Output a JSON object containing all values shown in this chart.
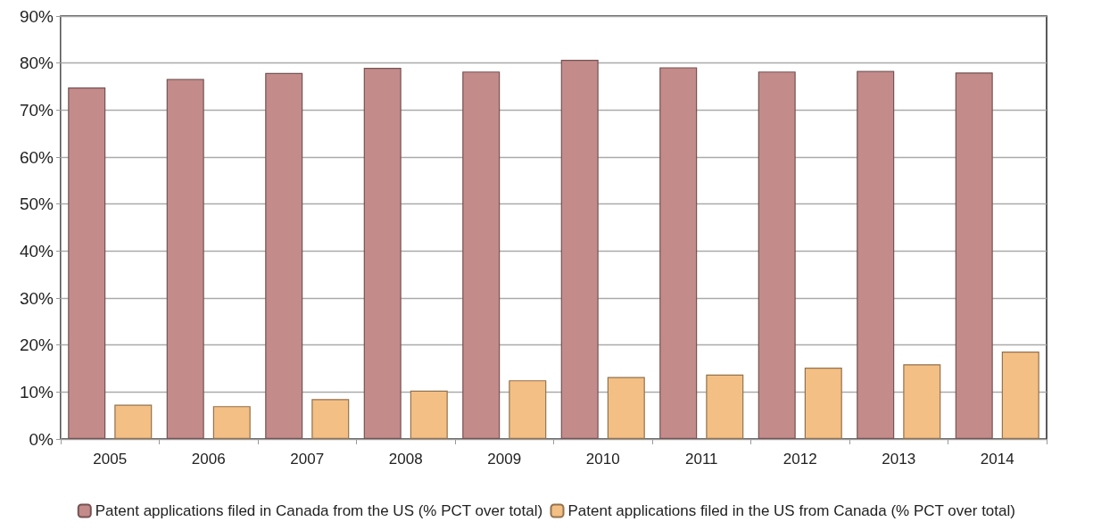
{
  "chart_data": {
    "type": "bar",
    "categories": [
      "2005",
      "2006",
      "2007",
      "2008",
      "2009",
      "2010",
      "2011",
      "2012",
      "2013",
      "2014"
    ],
    "series": [
      {
        "name": "Patent applications filed in Canada from the US (% PCT over total)",
        "color": "#c48b8b",
        "values": [
          74.8,
          76.6,
          77.9,
          79.0,
          78.2,
          80.7,
          79.1,
          78.2,
          78.3,
          78.0
        ]
      },
      {
        "name": "Patent applications filed in the US from Canada (% PCT over total)",
        "color": "#f4bf84",
        "values": [
          7.3,
          7.0,
          8.5,
          10.3,
          12.5,
          13.2,
          13.7,
          15.2,
          15.9,
          18.6
        ]
      }
    ],
    "ylim": [
      0,
      90
    ],
    "yticks": [
      {
        "value": 0,
        "label": "0%"
      },
      {
        "value": 10,
        "label": "10%"
      },
      {
        "value": 20,
        "label": "20%"
      },
      {
        "value": 30,
        "label": "30%"
      },
      {
        "value": 40,
        "label": "40%"
      },
      {
        "value": 50,
        "label": "50%"
      },
      {
        "value": 60,
        "label": "60%"
      },
      {
        "value": 70,
        "label": "70%"
      },
      {
        "value": 80,
        "label": "80%"
      },
      {
        "value": 90,
        "label": "90%"
      }
    ],
    "grid": "y",
    "legend": "bottom"
  }
}
